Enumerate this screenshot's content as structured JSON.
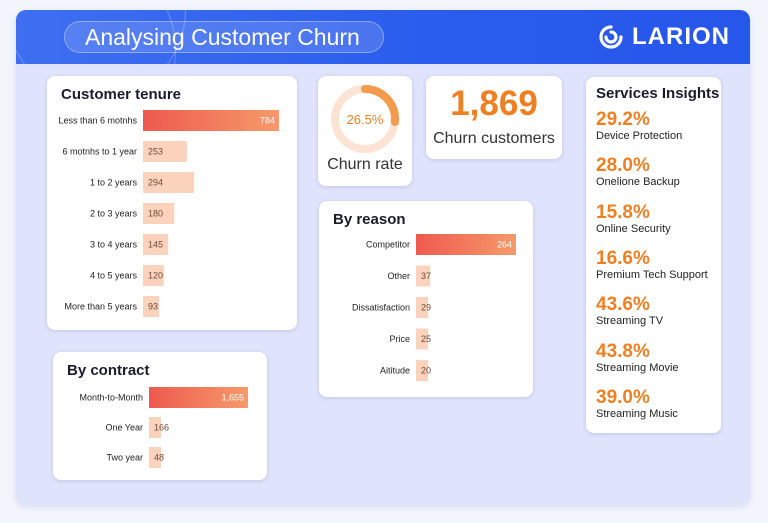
{
  "header": {
    "title": "Analysing Customer Churn",
    "logo_text": "LARION"
  },
  "colors": {
    "accent_orange": "#f07f22",
    "bar_gradient_start": "#ee5a4e",
    "bar_gradient_end": "#f59a6a",
    "bar_light": "#fbd3bd",
    "header_blue": "#2a5ded"
  },
  "churn_rate": {
    "value": 26.5,
    "display": "26.5%",
    "label": "Churn rate"
  },
  "churn_customers": {
    "value": "1,869",
    "label": "Churn customers"
  },
  "services": {
    "title": "Services Insights",
    "items": [
      {
        "pct": "29.2%",
        "name": "Device Protection"
      },
      {
        "pct": "28.0%",
        "name": "Onelione Backup"
      },
      {
        "pct": "15.8%",
        "name": "Online Security"
      },
      {
        "pct": "16.6%",
        "name": "Premium Tech Support"
      },
      {
        "pct": "43.6%",
        "name": "Streaming TV"
      },
      {
        "pct": "43.8%",
        "name": "Streaming Movie"
      },
      {
        "pct": "39.0%",
        "name": "Streaming Music"
      }
    ]
  },
  "chart_data": [
    {
      "type": "bar",
      "orientation": "horizontal",
      "title": "Customer tenure",
      "categories": [
        "Less than 6 motnhs",
        "6 motnhs to 1 year",
        "1 to 2 years",
        "2 to 3 years",
        "3 to 4 years",
        "4 to 5 years",
        "More than 5 years"
      ],
      "values": [
        784,
        253,
        294,
        180,
        145,
        120,
        93
      ],
      "value_labels": [
        "784",
        "253",
        "294",
        "180",
        "145",
        "120",
        "93"
      ]
    },
    {
      "type": "bar",
      "orientation": "horizontal",
      "title": "By reason",
      "categories": [
        "Competitor",
        "Other",
        "Dissatisfaction",
        "Price",
        "Aititude"
      ],
      "values": [
        264,
        37,
        29,
        25,
        20
      ],
      "value_labels": [
        "264",
        "37",
        "29",
        "25",
        "20"
      ]
    },
    {
      "type": "bar",
      "orientation": "horizontal",
      "title": "By contract",
      "categories": [
        "Month-to-Month",
        "One Year",
        "Two year"
      ],
      "values": [
        1655,
        166,
        48
      ],
      "value_labels": [
        "1,655",
        "166",
        "48"
      ]
    }
  ]
}
